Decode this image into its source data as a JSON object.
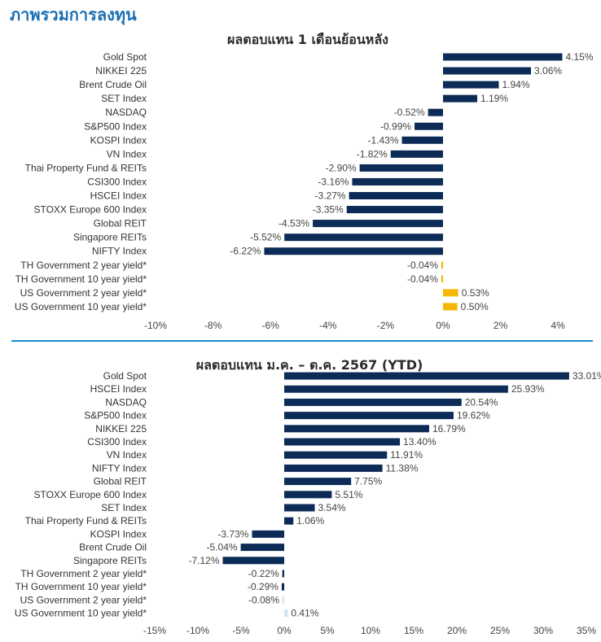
{
  "page_title": "ภาพรวมการลงทุน",
  "colors": {
    "navy": "#0c2c57",
    "gold": "#f5b800",
    "light_blue": "#cfe4f2",
    "divider": "#1a8ac8",
    "title": "#1a6fb5"
  },
  "chart_data": [
    {
      "type": "bar",
      "orientation": "horizontal",
      "title": "ผลตอบแทน 1 เดือนย้อนหลัง",
      "categories": [
        "Gold Spot",
        "NIKKEI 225",
        "Brent Crude Oil",
        "SET Index",
        "NASDAQ",
        "S&P500 Index",
        "KOSPI Index",
        "VN Index",
        "Thai Property Fund & REITs",
        "CSI300 Index",
        "HSCEI Index",
        "STOXX Europe 600 Index",
        "Global REIT",
        "Singapore REITs",
        "NIFTY Index",
        "TH Government 2 year yield*",
        "TH Government 10 year yield*",
        "US Government 2 year yield*",
        "US Government 10 year yield*"
      ],
      "values": [
        4.15,
        3.06,
        1.94,
        1.19,
        -0.52,
        -0.99,
        -1.43,
        -1.82,
        -2.9,
        -3.16,
        -3.27,
        -3.35,
        -4.53,
        -5.52,
        -6.22,
        -0.04,
        -0.04,
        0.53,
        0.5
      ],
      "value_labels": [
        "4.15%",
        "3.06%",
        "1.94%",
        "1.19%",
        "-0.52%",
        "-0.99%",
        "-1.43%",
        "-1.82%",
        "-2.90%",
        "-3.16%",
        "-3.27%",
        "-3.35%",
        "-4.53%",
        "-5.52%",
        "-6.22%",
        "-0.04%",
        "-0.04%",
        "0.53%",
        "0.50%"
      ],
      "bar_colors": [
        "navy",
        "navy",
        "navy",
        "navy",
        "navy",
        "navy",
        "navy",
        "navy",
        "navy",
        "navy",
        "navy",
        "navy",
        "navy",
        "navy",
        "navy",
        "gold",
        "gold",
        "gold",
        "gold"
      ],
      "xlim": [
        -10,
        4
      ],
      "xticks": [
        -10,
        -8,
        -6,
        -4,
        -2,
        0,
        2,
        4
      ],
      "xtick_labels": [
        "-10%",
        "-8%",
        "-6%",
        "-4%",
        "-2%",
        "0%",
        "2%",
        "4%"
      ]
    },
    {
      "type": "bar",
      "orientation": "horizontal",
      "title": "ผลตอบแทน ม.ค. – ต.ค. 2567 (YTD)",
      "categories": [
        "Gold Spot",
        "HSCEI Index",
        "NASDAQ",
        "S&P500 Index",
        "NIKKEI 225",
        "CSI300 Index",
        "VN Index",
        "NIFTY Index",
        "Global REIT",
        "STOXX Europe 600 Index",
        "SET Index",
        "Thai Property Fund & REITs",
        "KOSPI Index",
        "Brent Crude Oil",
        "Singapore REITs",
        "TH Government 2 year yield*",
        "TH Government 10 year yield*",
        "US Government 2 year yield*",
        "US Government 10 year yield*"
      ],
      "values": [
        33.01,
        25.93,
        20.54,
        19.62,
        16.79,
        13.4,
        11.91,
        11.38,
        7.75,
        5.51,
        3.54,
        1.06,
        -3.73,
        -5.04,
        -7.12,
        -0.22,
        -0.29,
        -0.08,
        0.41
      ],
      "value_labels": [
        "33.01%",
        "25.93%",
        "20.54%",
        "19.62%",
        "16.79%",
        "13.40%",
        "11.91%",
        "11.38%",
        "7.75%",
        "5.51%",
        "3.54%",
        "1.06%",
        "-3.73%",
        "-5.04%",
        "-7.12%",
        "-0.22%",
        "-0.29%",
        "-0.08%",
        "0.41%"
      ],
      "bar_colors": [
        "navy",
        "navy",
        "navy",
        "navy",
        "navy",
        "navy",
        "navy",
        "navy",
        "navy",
        "navy",
        "navy",
        "navy",
        "navy",
        "navy",
        "navy",
        "navy",
        "navy",
        "light_blue",
        "light_blue"
      ],
      "xlim": [
        -15,
        35
      ],
      "xticks": [
        -15,
        -10,
        -5,
        0,
        5,
        10,
        15,
        20,
        25,
        30,
        35
      ],
      "xtick_labels": [
        "-15%",
        "-10%",
        "-5%",
        "0%",
        "5%",
        "10%",
        "15%",
        "20%",
        "25%",
        "30%",
        "35%"
      ]
    }
  ]
}
